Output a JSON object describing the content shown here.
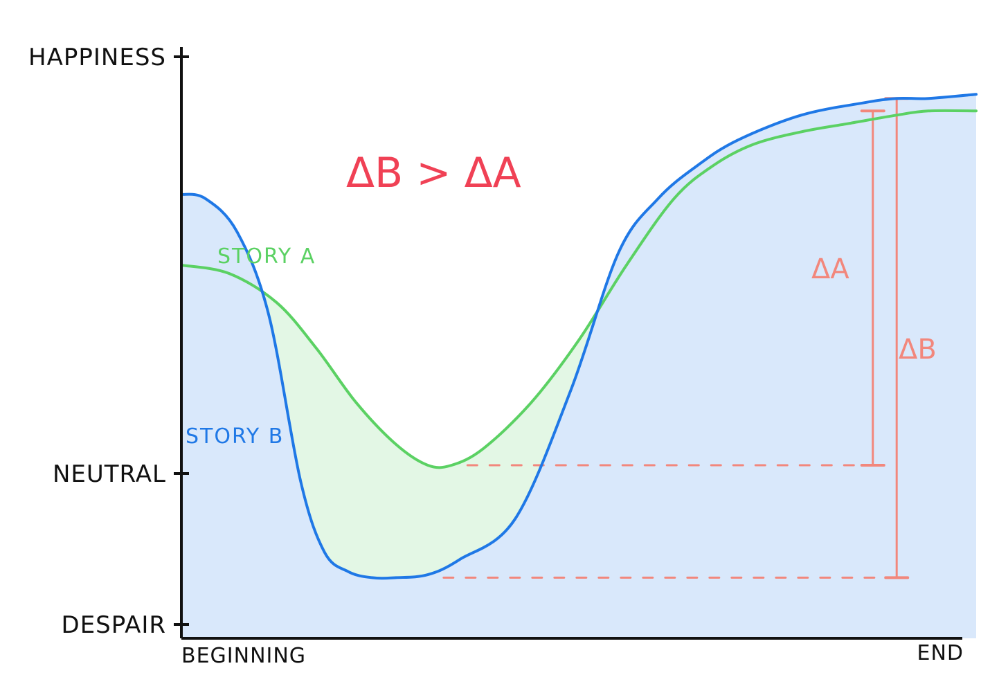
{
  "chart_data": {
    "type": "area",
    "title": "",
    "xlabel": "",
    "ylabel": "",
    "x_ticks": [
      "BEGINNING",
      "END"
    ],
    "y_ticks": [
      "HAPPINESS",
      "NEUTRAL",
      "DESPAIR"
    ],
    "y_tick_values": [
      1,
      0,
      -1
    ],
    "xlim": [
      0,
      1
    ],
    "ylim": [
      -1.1,
      1
    ],
    "grid": false,
    "annotation": "ΔB > ΔA",
    "colors": {
      "story_a": "#5bd163",
      "story_a_fill": "#e3f7e5",
      "story_b": "#1f78e6",
      "story_b_fill": "#d9e8fb",
      "delta": "#f2877c",
      "annotation": "#f04155",
      "axis": "#111111"
    },
    "series": [
      {
        "name": "STORY A",
        "color": "#5bd163",
        "x": [
          0.0,
          0.06,
          0.12,
          0.17,
          0.22,
          0.27,
          0.31,
          0.34,
          0.38,
          0.44,
          0.5,
          0.56,
          0.62,
          0.67,
          0.72,
          0.78,
          0.84,
          0.9,
          0.94,
          1.0
        ],
        "y": [
          0.5,
          0.48,
          0.41,
          0.3,
          0.17,
          0.07,
          0.02,
          0.02,
          0.06,
          0.17,
          0.32,
          0.5,
          0.66,
          0.74,
          0.79,
          0.82,
          0.84,
          0.86,
          0.87,
          0.87
        ]
      },
      {
        "name": "STORY B",
        "color": "#1f78e6",
        "x": [
          0.0,
          0.03,
          0.07,
          0.11,
          0.15,
          0.18,
          0.21,
          0.24,
          0.27,
          0.31,
          0.35,
          0.42,
          0.49,
          0.55,
          0.6,
          0.65,
          0.7,
          0.78,
          0.86,
          0.9,
          0.94,
          1.0
        ],
        "y": [
          0.67,
          0.66,
          0.58,
          0.38,
          -0.05,
          -0.52,
          -0.65,
          -0.69,
          -0.69,
          -0.67,
          -0.57,
          -0.3,
          0.2,
          0.53,
          0.66,
          0.74,
          0.8,
          0.86,
          0.89,
          0.9,
          0.9,
          0.91
        ]
      }
    ],
    "deltas": [
      {
        "label": "ΔA",
        "series": "STORY A",
        "from": 0.02,
        "to": 0.87
      },
      {
        "label": "ΔB",
        "series": "STORY B",
        "from": -0.69,
        "to": 0.9
      }
    ]
  }
}
